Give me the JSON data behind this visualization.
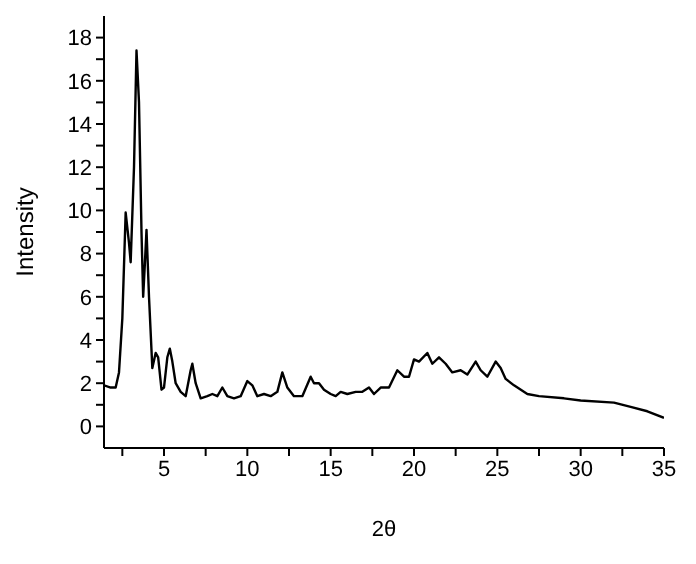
{
  "chart_data": {
    "type": "line",
    "xlabel": "2θ",
    "ylabel": "Intensity",
    "x": [
      1.4,
      1.8,
      2.1,
      2.3,
      2.5,
      2.7,
      2.9,
      3.0,
      3.2,
      3.35,
      3.5,
      3.65,
      3.75,
      3.85,
      3.95,
      4.1,
      4.3,
      4.5,
      4.65,
      4.85,
      5.0,
      5.2,
      5.35,
      5.5,
      5.7,
      6.0,
      6.3,
      6.6,
      6.7,
      6.9,
      7.2,
      7.6,
      7.9,
      8.2,
      8.5,
      8.8,
      9.2,
      9.6,
      10.0,
      10.3,
      10.6,
      11.0,
      11.4,
      11.8,
      12.1,
      12.4,
      12.8,
      13.3,
      13.8,
      14.0,
      14.3,
      14.6,
      15.0,
      15.3,
      15.6,
      16.0,
      16.5,
      16.9,
      17.3,
      17.6,
      18.0,
      18.5,
      19.0,
      19.4,
      19.7,
      20.0,
      20.3,
      20.8,
      21.1,
      21.5,
      21.9,
      22.3,
      22.8,
      23.2,
      23.7,
      24.0,
      24.4,
      24.9,
      25.2,
      25.5,
      26.0,
      26.8,
      27.5,
      29,
      30,
      32,
      33,
      34,
      35
    ],
    "series": [
      {
        "color": "#000000",
        "values": [
          1.9,
          1.8,
          1.8,
          2.5,
          5,
          9.9,
          8.5,
          7.6,
          12,
          17.4,
          15,
          9,
          6.0,
          7.5,
          9.1,
          6,
          2.7,
          3.4,
          3.2,
          1.7,
          1.8,
          3.2,
          3.6,
          3.0,
          2.0,
          1.6,
          1.4,
          2.6,
          2.9,
          2.0,
          1.3,
          1.4,
          1.5,
          1.4,
          1.8,
          1.4,
          1.3,
          1.4,
          2.1,
          1.9,
          1.4,
          1.5,
          1.4,
          1.6,
          2.5,
          1.8,
          1.4,
          1.4,
          2.3,
          2.0,
          2.0,
          1.7,
          1.5,
          1.4,
          1.6,
          1.5,
          1.6,
          1.6,
          1.8,
          1.5,
          1.8,
          1.8,
          2.6,
          2.3,
          2.3,
          3.1,
          3.0,
          3.4,
          2.9,
          3.2,
          2.9,
          2.5,
          2.6,
          2.4,
          3.0,
          2.6,
          2.3,
          3.0,
          2.7,
          2.2,
          1.9,
          1.5,
          1.4,
          1.3,
          1.2,
          1.1,
          0.9,
          0.7,
          0.4
        ]
      }
    ],
    "xlim": [
      1.4,
      35
    ],
    "xticks": [
      {
        "value": 2.5,
        "label": null
      },
      5,
      {
        "value": 7.5,
        "label": null
      },
      10,
      {
        "value": 12.5,
        "label": null
      },
      15,
      {
        "value": 17.5,
        "label": null
      },
      20,
      {
        "value": 22.5,
        "label": null
      },
      25,
      {
        "value": 27.5,
        "label": null
      },
      30,
      {
        "value": 32.5,
        "label": null
      },
      35
    ],
    "ylim": [
      -1,
      19
    ],
    "yticks": [
      0,
      {
        "value": 1,
        "label": null
      },
      2,
      {
        "value": 3,
        "label": null
      },
      4,
      {
        "value": 5,
        "label": null
      },
      6,
      {
        "value": 7,
        "label": null
      },
      8,
      {
        "value": 9,
        "label": null
      },
      10,
      {
        "value": 11,
        "label": null
      },
      12,
      {
        "value": 13,
        "label": null
      },
      14,
      {
        "value": 15,
        "label": null
      },
      16,
      {
        "value": 17,
        "label": null
      },
      18
    ],
    "grid": false,
    "legend": false,
    "marker": "none",
    "line_style": "solid"
  }
}
